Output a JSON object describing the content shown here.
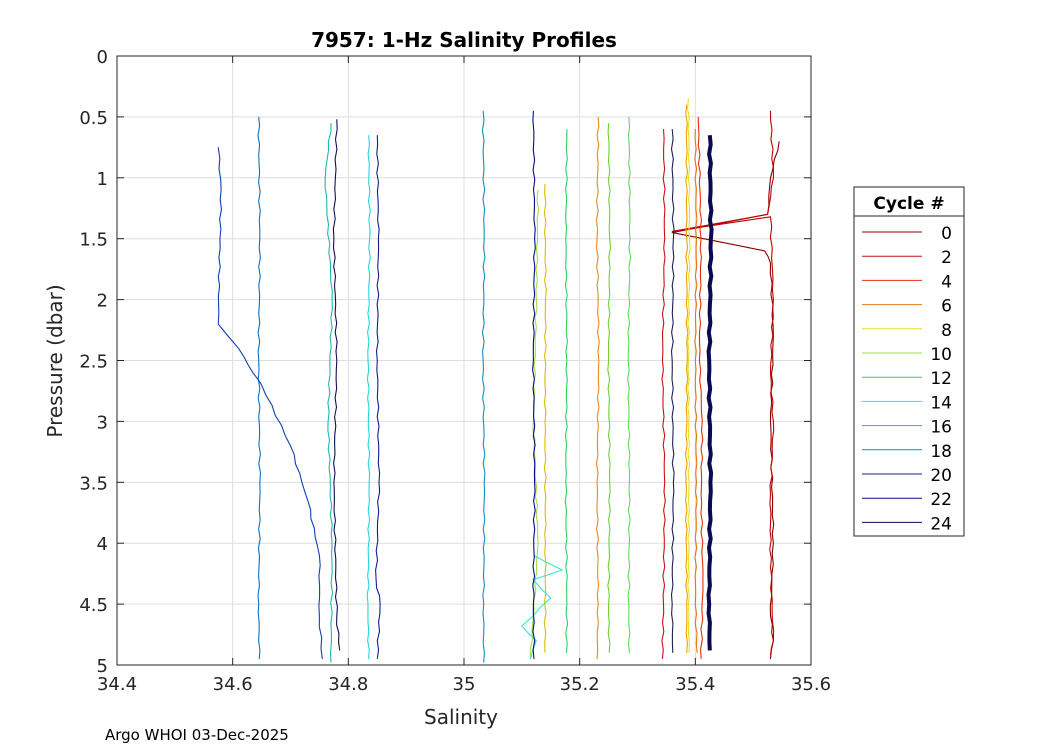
{
  "chart_data": {
    "type": "line",
    "title": "7957: 1-Hz Salinity Profiles",
    "xlabel": "Salinity",
    "ylabel": "Pressure (dbar)",
    "xlim": [
      34.4,
      35.6
    ],
    "ylim": [
      0,
      5
    ],
    "y_reversed": true,
    "grid": true,
    "xticks": [
      "34.4",
      "34.6",
      "34.8",
      "35",
      "35.2",
      "35.4",
      "35.6"
    ],
    "yticks": [
      "0",
      "0.5",
      "1",
      "1.5",
      "2",
      "2.5",
      "3",
      "3.5",
      "4",
      "4.5",
      "5"
    ],
    "legend": {
      "title": "Cycle #",
      "placement": "right"
    },
    "series": [
      {
        "name": "0",
        "color": "#8b0000",
        "points": [
          [
            35.545,
            0.7
          ],
          [
            35.53,
            1.0
          ],
          [
            35.525,
            1.3
          ],
          [
            35.36,
            1.45
          ],
          [
            35.52,
            1.6
          ],
          [
            35.53,
            1.7
          ],
          [
            35.535,
            2.3
          ],
          [
            35.53,
            3.0
          ],
          [
            35.535,
            4.0
          ],
          [
            35.53,
            4.6
          ],
          [
            35.535,
            4.8
          ],
          [
            35.53,
            4.95
          ]
        ]
      },
      {
        "name": "",
        "color": "#c00000",
        "points": [
          [
            35.53,
            0.45
          ],
          [
            35.535,
            1.0
          ],
          [
            35.525,
            1.3
          ],
          [
            35.36,
            1.44
          ],
          [
            35.53,
            1.32
          ],
          [
            35.535,
            2.0
          ],
          [
            35.53,
            2.6
          ],
          [
            35.535,
            3.0
          ],
          [
            35.53,
            3.6
          ],
          [
            35.53,
            4.2
          ],
          [
            35.535,
            4.8
          ],
          [
            35.53,
            4.92
          ]
        ]
      },
      {
        "name": "2",
        "color": "#cc1010",
        "points": [
          [
            35.345,
            0.6
          ],
          [
            35.347,
            1.5
          ],
          [
            35.343,
            2.5
          ],
          [
            35.347,
            3.5
          ],
          [
            35.345,
            4.5
          ],
          [
            35.343,
            4.95
          ]
        ]
      },
      {
        "name": "4",
        "color": "#e03010",
        "points": [
          [
            35.405,
            0.5
          ],
          [
            35.41,
            1.5
          ],
          [
            35.407,
            2.5
          ],
          [
            35.412,
            3.0
          ],
          [
            35.41,
            3.6
          ],
          [
            35.413,
            4.3
          ],
          [
            35.41,
            4.95
          ]
        ]
      },
      {
        "name": "6",
        "color": "#e07810",
        "points": [
          [
            35.4,
            0.6
          ],
          [
            35.402,
            1.5
          ],
          [
            35.4,
            2.5
          ],
          [
            35.402,
            3.5
          ],
          [
            35.4,
            4.5
          ],
          [
            35.403,
            4.9
          ]
        ]
      },
      {
        "name": "",
        "color": "#e88a20",
        "points": [
          [
            35.232,
            0.5
          ],
          [
            35.23,
            1.5
          ],
          [
            35.233,
            2.5
          ],
          [
            35.23,
            3.5
          ],
          [
            35.232,
            4.5
          ],
          [
            35.23,
            4.95
          ]
        ]
      },
      {
        "name": "",
        "color": "#f0a000",
        "points": [
          [
            35.385,
            0.4
          ],
          [
            35.385,
            1.5
          ],
          [
            35.386,
            2.5
          ],
          [
            35.384,
            3.5
          ],
          [
            35.385,
            4.5
          ],
          [
            35.385,
            4.9
          ]
        ]
      },
      {
        "name": "8",
        "color": "#e8e020",
        "points": [
          [
            35.388,
            0.35
          ],
          [
            35.39,
            1.5
          ],
          [
            35.388,
            2.5
          ],
          [
            35.389,
            3.5
          ],
          [
            35.388,
            4.5
          ],
          [
            35.389,
            4.9
          ]
        ]
      },
      {
        "name": "",
        "color": "#d8c000",
        "points": [
          [
            35.14,
            1.05
          ],
          [
            35.141,
            2.0
          ],
          [
            35.14,
            3.0
          ],
          [
            35.141,
            4.0
          ],
          [
            35.14,
            4.9
          ]
        ]
      },
      {
        "name": "10",
        "color": "#a0e040",
        "points": [
          [
            35.128,
            1.1
          ],
          [
            35.125,
            2.0
          ],
          [
            35.12,
            3.0
          ],
          [
            35.128,
            4.0
          ],
          [
            35.115,
            4.95
          ]
        ]
      },
      {
        "name": "",
        "color": "#70d030",
        "points": [
          [
            35.25,
            0.55
          ],
          [
            35.252,
            1.5
          ],
          [
            35.25,
            2.5
          ],
          [
            35.252,
            3.5
          ],
          [
            35.25,
            4.5
          ],
          [
            35.251,
            4.9
          ]
        ]
      },
      {
        "name": "12",
        "color": "#30d060",
        "points": [
          [
            35.178,
            0.6
          ],
          [
            35.176,
            1.5
          ],
          [
            35.178,
            2.5
          ],
          [
            35.176,
            3.5
          ],
          [
            35.178,
            4.5
          ],
          [
            35.177,
            4.9
          ]
        ]
      },
      {
        "name": "",
        "color": "#60d860",
        "points": [
          [
            35.285,
            0.5
          ],
          [
            35.287,
            1.5
          ],
          [
            35.284,
            2.5
          ],
          [
            35.286,
            3.5
          ],
          [
            35.285,
            4.5
          ],
          [
            35.286,
            4.9
          ]
        ]
      },
      {
        "name": "14",
        "color": "#30e8d0",
        "points": [
          [
            35.12,
            4.1
          ],
          [
            35.17,
            4.22
          ],
          [
            35.12,
            4.3
          ],
          [
            35.15,
            4.45
          ],
          [
            35.1,
            4.68
          ],
          [
            35.125,
            4.8
          ],
          [
            35.115,
            4.95
          ]
        ]
      },
      {
        "name": "",
        "color": "#20d8d8",
        "points": [
          [
            34.835,
            0.65
          ],
          [
            34.837,
            1.5
          ],
          [
            34.834,
            2.5
          ],
          [
            34.836,
            3.5
          ],
          [
            34.834,
            4.5
          ],
          [
            34.835,
            4.95
          ]
        ]
      },
      {
        "name": "16",
        "color": "#20b8b0",
        "points": [
          [
            34.77,
            0.55
          ],
          [
            34.76,
            1.0
          ],
          [
            34.772,
            2.0
          ],
          [
            34.765,
            3.0
          ],
          [
            34.772,
            4.0
          ],
          [
            34.77,
            4.98
          ]
        ]
      },
      {
        "name": "18",
        "color": "#1090c0",
        "points": [
          [
            35.033,
            0.45
          ],
          [
            35.035,
            1.5
          ],
          [
            35.033,
            2.5
          ],
          [
            35.035,
            3.5
          ],
          [
            35.034,
            4.5
          ],
          [
            35.034,
            4.98
          ]
        ]
      },
      {
        "name": "",
        "color": "#1070c0",
        "points": [
          [
            34.645,
            0.5
          ],
          [
            34.647,
            1.5
          ],
          [
            34.645,
            2.5
          ],
          [
            34.647,
            3.5
          ],
          [
            34.645,
            4.5
          ],
          [
            34.646,
            4.95
          ]
        ]
      },
      {
        "name": "20",
        "color": "#102090",
        "points": [
          [
            34.85,
            0.65
          ],
          [
            34.852,
            1.5
          ],
          [
            34.85,
            2.5
          ],
          [
            34.853,
            3.5
          ],
          [
            34.848,
            4.3
          ],
          [
            34.855,
            4.5
          ],
          [
            34.85,
            4.95
          ]
        ]
      },
      {
        "name": "",
        "color": "#1040b0",
        "points": [
          [
            34.575,
            0.75
          ],
          [
            34.58,
            1.1
          ],
          [
            34.578,
            1.5
          ],
          [
            34.575,
            2.2
          ],
          [
            34.61,
            2.4
          ],
          [
            34.635,
            2.6
          ],
          [
            34.65,
            2.7
          ],
          [
            34.7,
            3.2
          ],
          [
            34.73,
            3.65
          ],
          [
            34.75,
            4.1
          ],
          [
            34.75,
            4.6
          ],
          [
            34.755,
            4.95
          ]
        ]
      },
      {
        "name": "22",
        "color": "#0a0a90",
        "points": [
          [
            35.12,
            0.45
          ],
          [
            35.122,
            1.5
          ],
          [
            35.12,
            2.5
          ],
          [
            35.122,
            3.5
          ],
          [
            35.12,
            4.5
          ],
          [
            35.121,
            4.95
          ]
        ]
      },
      {
        "name": "",
        "color": "#101050",
        "points": [
          [
            34.78,
            0.52
          ],
          [
            34.775,
            1.5
          ],
          [
            34.78,
            2.5
          ],
          [
            34.775,
            3.5
          ],
          [
            34.78,
            4.6
          ],
          [
            34.785,
            4.88
          ]
        ]
      },
      {
        "name": "",
        "color": "#202050",
        "points": [
          [
            35.36,
            0.6
          ],
          [
            35.362,
            1.5
          ],
          [
            35.36,
            2.5
          ],
          [
            35.362,
            3.5
          ],
          [
            35.36,
            4.5
          ],
          [
            35.361,
            4.9
          ]
        ]
      },
      {
        "name": "24",
        "color": "#0a0a50",
        "points": [
          [
            35.425,
            0.65
          ],
          [
            35.427,
            1.5
          ],
          [
            35.424,
            2.5
          ],
          [
            35.426,
            3.5
          ],
          [
            35.424,
            4.5
          ],
          [
            35.425,
            4.88
          ]
        ],
        "thick": true
      }
    ]
  },
  "footer": "Argo WHOI 03-Dec-2025"
}
